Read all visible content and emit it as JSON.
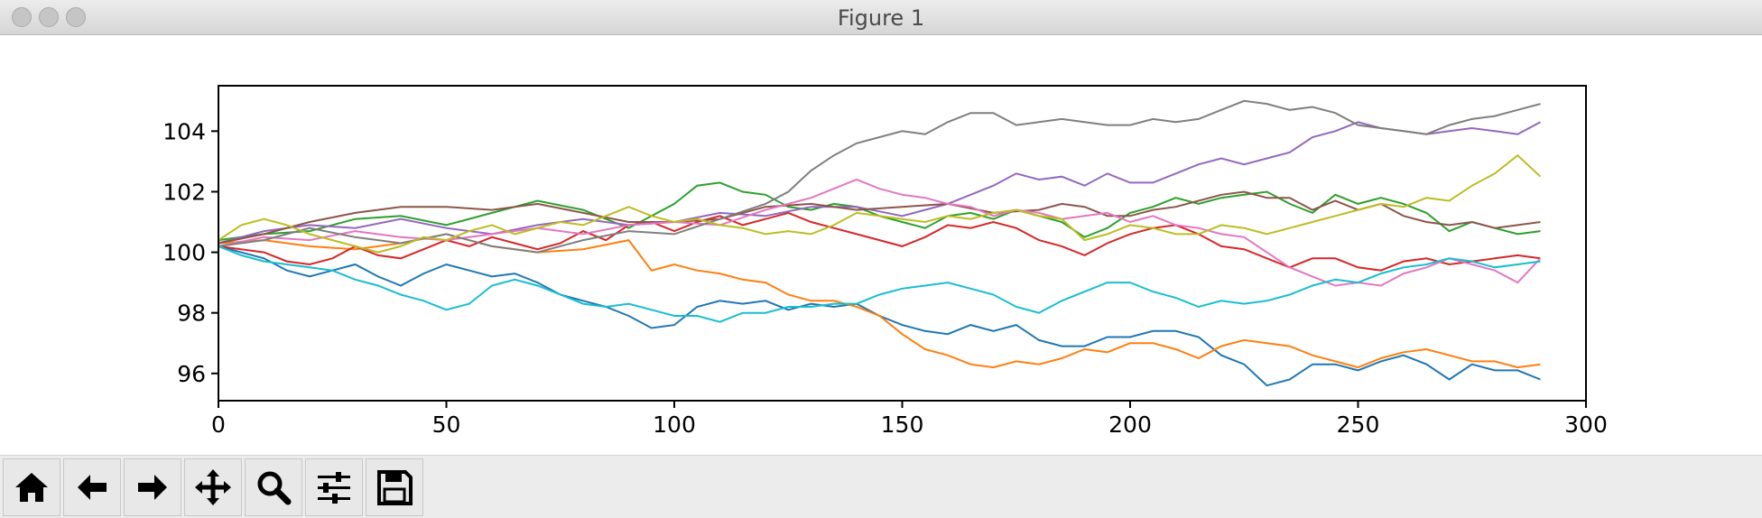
{
  "window": {
    "title": "Figure 1"
  },
  "toolbar": {
    "buttons": [
      {
        "name": "home-button",
        "icon": "home-icon"
      },
      {
        "name": "back-button",
        "icon": "arrow-left-icon"
      },
      {
        "name": "forward-button",
        "icon": "arrow-right-icon"
      },
      {
        "name": "pan-button",
        "icon": "move-icon"
      },
      {
        "name": "zoom-button",
        "icon": "search-icon"
      },
      {
        "name": "configure-subplots-button",
        "icon": "sliders-icon"
      },
      {
        "name": "save-button",
        "icon": "save-icon"
      }
    ]
  },
  "chart_data": {
    "type": "line",
    "title": "",
    "xlabel": "",
    "ylabel": "",
    "xlim": [
      0,
      300
    ],
    "ylim": [
      95.1,
      105.5
    ],
    "xticks": [
      0,
      50,
      100,
      150,
      200,
      250,
      300
    ],
    "yticks": [
      96,
      98,
      100,
      102,
      104
    ],
    "grid": false,
    "legend": "none",
    "series": [
      {
        "color": "#1f77b4",
        "x": [
          0,
          10,
          15,
          20,
          25,
          30,
          35,
          40,
          45,
          50,
          55,
          60,
          65,
          70,
          75,
          80,
          85,
          90,
          95,
          100,
          105,
          110,
          115,
          120,
          125,
          130,
          135,
          140,
          145,
          150,
          155,
          160,
          165,
          170,
          175,
          180,
          185,
          190,
          195,
          200,
          205,
          210,
          215,
          220,
          225,
          230,
          235,
          240,
          245,
          250,
          255,
          260,
          265,
          270,
          275,
          280,
          285,
          290
        ],
        "y": [
          100.2,
          99.8,
          99.4,
          99.2,
          99.4,
          99.6,
          99.2,
          98.9,
          99.3,
          99.6,
          99.4,
          99.2,
          99.3,
          99.0,
          98.6,
          98.4,
          98.2,
          97.9,
          97.5,
          97.6,
          98.2,
          98.4,
          98.3,
          98.4,
          98.1,
          98.3,
          98.2,
          98.3,
          97.9,
          97.6,
          97.4,
          97.3,
          97.6,
          97.4,
          97.6,
          97.1,
          96.9,
          96.9,
          97.2,
          97.2,
          97.4,
          97.4,
          97.2,
          96.6,
          96.3,
          95.6,
          95.8,
          96.3,
          96.3,
          96.1,
          96.4,
          96.6,
          96.3,
          95.8,
          96.3,
          96.1,
          96.1,
          95.8
        ]
      },
      {
        "color": "#ff7f0e",
        "x": [
          0,
          10,
          20,
          30,
          40,
          50,
          60,
          70,
          80,
          90,
          95,
          100,
          105,
          110,
          115,
          120,
          125,
          130,
          135,
          140,
          145,
          150,
          155,
          160,
          165,
          170,
          175,
          180,
          185,
          190,
          195,
          200,
          205,
          210,
          215,
          220,
          225,
          230,
          235,
          240,
          245,
          250,
          255,
          260,
          265,
          270,
          275,
          280,
          285,
          290
        ],
        "y": [
          100.3,
          100.4,
          100.2,
          100.1,
          100.3,
          100.6,
          100.2,
          100.0,
          100.1,
          100.4,
          99.4,
          99.6,
          99.4,
          99.3,
          99.1,
          99.0,
          98.6,
          98.4,
          98.4,
          98.2,
          97.9,
          97.3,
          96.8,
          96.6,
          96.3,
          96.2,
          96.4,
          96.3,
          96.5,
          96.8,
          96.7,
          97.0,
          97.0,
          96.8,
          96.5,
          96.9,
          97.1,
          97.0,
          96.9,
          96.6,
          96.4,
          96.2,
          96.5,
          96.7,
          96.8,
          96.6,
          96.4,
          96.4,
          96.2,
          96.3
        ]
      },
      {
        "color": "#2ca02c",
        "x": [
          0,
          10,
          20,
          30,
          40,
          50,
          60,
          70,
          80,
          90,
          100,
          105,
          110,
          115,
          120,
          125,
          130,
          135,
          140,
          145,
          150,
          155,
          160,
          165,
          170,
          175,
          180,
          185,
          190,
          195,
          200,
          205,
          210,
          215,
          220,
          225,
          230,
          235,
          240,
          245,
          250,
          255,
          260,
          265,
          270,
          275,
          280,
          285,
          290
        ],
        "y": [
          100.4,
          100.6,
          100.7,
          101.1,
          101.2,
          100.9,
          101.3,
          101.7,
          101.4,
          100.8,
          101.6,
          102.2,
          102.3,
          102.0,
          101.9,
          101.5,
          101.4,
          101.6,
          101.5,
          101.2,
          101.0,
          100.8,
          101.2,
          101.3,
          101.1,
          101.4,
          101.2,
          101.0,
          100.5,
          100.8,
          101.3,
          101.5,
          101.8,
          101.6,
          101.8,
          101.9,
          102.0,
          101.6,
          101.3,
          101.9,
          101.6,
          101.8,
          101.6,
          101.3,
          100.7,
          101.0,
          100.8,
          100.6,
          100.7
        ]
      },
      {
        "color": "#d62728",
        "x": [
          0,
          10,
          15,
          20,
          25,
          30,
          35,
          40,
          45,
          50,
          55,
          60,
          65,
          70,
          75,
          80,
          85,
          90,
          95,
          100,
          105,
          110,
          115,
          120,
          125,
          130,
          135,
          140,
          145,
          150,
          155,
          160,
          165,
          170,
          175,
          180,
          185,
          190,
          195,
          200,
          205,
          210,
          215,
          220,
          225,
          230,
          235,
          240,
          245,
          250,
          255,
          260,
          265,
          270,
          275,
          280,
          285,
          290
        ],
        "y": [
          100.2,
          100.0,
          99.7,
          99.6,
          99.8,
          100.2,
          99.9,
          99.8,
          100.1,
          100.4,
          100.2,
          100.5,
          100.3,
          100.1,
          100.3,
          100.7,
          100.4,
          100.9,
          101.0,
          100.7,
          101.0,
          101.2,
          100.9,
          101.1,
          101.3,
          101.0,
          100.8,
          100.6,
          100.4,
          100.2,
          100.5,
          100.9,
          100.8,
          101.0,
          100.8,
          100.4,
          100.2,
          99.9,
          100.3,
          100.6,
          100.8,
          100.9,
          100.6,
          100.2,
          100.1,
          99.8,
          99.5,
          99.8,
          99.8,
          99.5,
          99.4,
          99.7,
          99.8,
          99.6,
          99.7,
          99.8,
          99.9,
          99.8
        ]
      },
      {
        "color": "#9467bd",
        "x": [
          0,
          10,
          20,
          30,
          40,
          50,
          60,
          70,
          80,
          90,
          100,
          110,
          120,
          130,
          140,
          150,
          160,
          170,
          175,
          180,
          185,
          190,
          195,
          200,
          205,
          210,
          215,
          220,
          225,
          230,
          235,
          240,
          245,
          250,
          255,
          260,
          265,
          270,
          275,
          280,
          285,
          290
        ],
        "y": [
          100.3,
          100.7,
          100.9,
          100.8,
          101.1,
          100.8,
          100.6,
          100.9,
          101.1,
          100.9,
          101.0,
          101.3,
          101.2,
          101.5,
          101.5,
          101.2,
          101.6,
          102.2,
          102.6,
          102.4,
          102.5,
          102.2,
          102.6,
          102.3,
          102.3,
          102.6,
          102.9,
          103.1,
          102.9,
          103.1,
          103.3,
          103.8,
          104.0,
          104.3,
          104.1,
          104.0,
          103.9,
          104.0,
          104.1,
          104.0,
          103.9,
          104.3
        ]
      },
      {
        "color": "#8c564b",
        "x": [
          0,
          10,
          20,
          30,
          40,
          50,
          60,
          70,
          80,
          90,
          100,
          110,
          120,
          130,
          140,
          150,
          160,
          170,
          180,
          185,
          190,
          195,
          200,
          205,
          210,
          215,
          220,
          225,
          230,
          235,
          240,
          245,
          250,
          255,
          260,
          265,
          270,
          275,
          280,
          285,
          290
        ],
        "y": [
          100.3,
          100.6,
          101.0,
          101.3,
          101.5,
          101.5,
          101.4,
          101.6,
          101.3,
          101.0,
          101.0,
          101.1,
          101.5,
          101.6,
          101.4,
          101.5,
          101.6,
          101.3,
          101.4,
          101.6,
          101.5,
          101.2,
          101.2,
          101.4,
          101.5,
          101.7,
          101.9,
          102.0,
          101.8,
          101.8,
          101.4,
          101.7,
          101.4,
          101.6,
          101.2,
          101.0,
          100.9,
          101.0,
          100.8,
          100.9,
          101.0
        ]
      },
      {
        "color": "#e377c2",
        "x": [
          0,
          10,
          20,
          30,
          40,
          50,
          60,
          70,
          80,
          90,
          100,
          110,
          120,
          130,
          140,
          145,
          150,
          155,
          160,
          165,
          170,
          175,
          180,
          185,
          190,
          195,
          200,
          205,
          210,
          215,
          220,
          225,
          230,
          235,
          240,
          245,
          250,
          255,
          260,
          265,
          270,
          275,
          280,
          285,
          290
        ],
        "y": [
          100.2,
          100.5,
          100.4,
          100.7,
          100.5,
          100.4,
          100.6,
          100.8,
          100.6,
          100.9,
          101.0,
          100.9,
          101.4,
          101.8,
          102.4,
          102.1,
          101.9,
          101.8,
          101.6,
          101.5,
          101.2,
          101.4,
          101.3,
          101.1,
          101.2,
          101.3,
          101.0,
          101.2,
          100.9,
          100.8,
          100.6,
          100.5,
          100.0,
          99.5,
          99.2,
          98.9,
          99.0,
          98.9,
          99.3,
          99.5,
          99.8,
          99.6,
          99.4,
          99.0,
          99.8
        ]
      },
      {
        "color": "#7f7f7f",
        "x": [
          0,
          10,
          20,
          30,
          40,
          50,
          60,
          70,
          80,
          90,
          100,
          110,
          120,
          125,
          130,
          135,
          140,
          145,
          150,
          155,
          160,
          165,
          170,
          175,
          180,
          185,
          190,
          195,
          200,
          205,
          210,
          215,
          220,
          225,
          230,
          235,
          240,
          245,
          250,
          255,
          260,
          265,
          270,
          275,
          280,
          285,
          290
        ],
        "y": [
          100.2,
          100.4,
          100.8,
          100.5,
          100.3,
          100.6,
          100.2,
          100.0,
          100.4,
          100.7,
          100.6,
          101.1,
          101.6,
          102.0,
          102.7,
          103.2,
          103.6,
          103.8,
          104.0,
          103.9,
          104.3,
          104.6,
          104.6,
          104.2,
          104.3,
          104.4,
          104.3,
          104.2,
          104.2,
          104.4,
          104.3,
          104.4,
          104.7,
          105.0,
          104.9,
          104.7,
          104.8,
          104.6,
          104.2,
          104.1,
          104.0,
          103.9,
          104.2,
          104.4,
          104.5,
          104.7,
          104.9
        ]
      },
      {
        "color": "#bcbd22",
        "x": [
          0,
          5,
          10,
          15,
          20,
          25,
          30,
          35,
          40,
          45,
          50,
          55,
          60,
          65,
          70,
          75,
          80,
          85,
          90,
          95,
          100,
          105,
          110,
          115,
          120,
          125,
          130,
          135,
          140,
          145,
          150,
          155,
          160,
          165,
          170,
          175,
          180,
          185,
          190,
          195,
          200,
          205,
          210,
          215,
          220,
          225,
          230,
          235,
          240,
          245,
          250,
          255,
          260,
          265,
          270,
          275,
          280,
          285,
          290
        ],
        "y": [
          100.4,
          100.9,
          101.1,
          100.9,
          100.6,
          100.4,
          100.2,
          100.0,
          100.2,
          100.5,
          100.4,
          100.7,
          100.9,
          100.6,
          100.8,
          101.0,
          100.9,
          101.2,
          101.5,
          101.2,
          101.0,
          101.1,
          100.9,
          100.8,
          100.6,
          100.7,
          100.6,
          100.9,
          101.3,
          101.2,
          101.1,
          101.0,
          101.2,
          101.1,
          101.3,
          101.4,
          101.2,
          101.1,
          100.4,
          100.6,
          100.9,
          100.8,
          100.6,
          100.6,
          100.9,
          100.8,
          100.6,
          100.8,
          101.0,
          101.2,
          101.4,
          101.6,
          101.5,
          101.8,
          101.7,
          102.2,
          102.6,
          103.2,
          102.5
        ]
      },
      {
        "color": "#17becf",
        "x": [
          0,
          5,
          10,
          15,
          20,
          25,
          30,
          35,
          40,
          45,
          50,
          55,
          60,
          65,
          70,
          75,
          80,
          85,
          90,
          95,
          100,
          105,
          110,
          115,
          120,
          125,
          130,
          135,
          140,
          145,
          150,
          155,
          160,
          165,
          170,
          175,
          180,
          185,
          190,
          195,
          200,
          205,
          210,
          215,
          220,
          225,
          230,
          235,
          240,
          245,
          250,
          255,
          260,
          265,
          270,
          275,
          280,
          285,
          290
        ],
        "y": [
          100.2,
          99.9,
          99.7,
          99.6,
          99.5,
          99.4,
          99.1,
          98.9,
          98.6,
          98.4,
          98.1,
          98.3,
          98.9,
          99.1,
          98.9,
          98.6,
          98.3,
          98.2,
          98.3,
          98.1,
          97.9,
          97.9,
          97.7,
          98.0,
          98.0,
          98.2,
          98.2,
          98.3,
          98.3,
          98.6,
          98.8,
          98.9,
          99.0,
          98.8,
          98.6,
          98.2,
          98.0,
          98.4,
          98.7,
          99.0,
          99.0,
          98.7,
          98.5,
          98.2,
          98.4,
          98.3,
          98.4,
          98.6,
          98.9,
          99.1,
          99.0,
          99.3,
          99.5,
          99.6,
          99.8,
          99.7,
          99.5,
          99.6,
          99.7
        ]
      }
    ]
  }
}
